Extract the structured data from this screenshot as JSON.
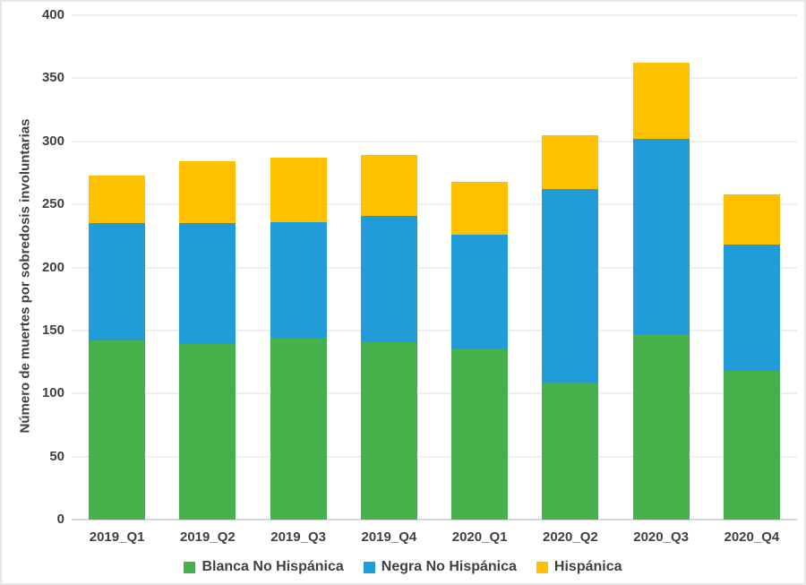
{
  "chart_data": {
    "type": "bar",
    "stacked": true,
    "title": "",
    "xlabel": "",
    "ylabel": "Número de muertes por sobredosis involuntarias",
    "categories": [
      "2019_Q1",
      "2019_Q2",
      "2019_Q3",
      "2019_Q4",
      "2020_Q1",
      "2020_Q2",
      "2020_Q3",
      "2020_Q4"
    ],
    "series": [
      {
        "name": "Blanca No Hispánica",
        "color": "#46B14A",
        "values": [
          142,
          139,
          144,
          141,
          136,
          109,
          147,
          118
        ]
      },
      {
        "name": "Negra No Hispánica",
        "color": "#209CD8",
        "values": [
          93,
          96,
          92,
          100,
          90,
          153,
          155,
          100
        ]
      },
      {
        "name": "Hispánica",
        "color": "#FFC000",
        "values": [
          38,
          49,
          51,
          48,
          42,
          43,
          60,
          40
        ]
      }
    ],
    "stack_totals": [
      273,
      284,
      287,
      289,
      268,
      305,
      362,
      258
    ],
    "ylim": [
      0,
      400
    ],
    "yticks": [
      0,
      50,
      100,
      150,
      200,
      250,
      300,
      350,
      400
    ],
    "grid": true,
    "legend_position": "bottom"
  },
  "colors": {
    "text": "#404040",
    "gridline": "#F0F0F0",
    "axis_line": "#D8D8D8",
    "background": "#FFFFFF",
    "frame_border": "#E7E7E7"
  }
}
